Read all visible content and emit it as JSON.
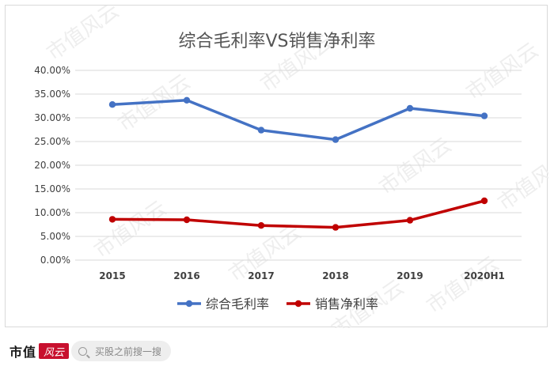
{
  "chart_data": {
    "type": "line",
    "title": "综合毛利率VS销售净利率",
    "categories": [
      "2015",
      "2016",
      "2017",
      "2018",
      "2019",
      "2020H1"
    ],
    "series": [
      {
        "name": "综合毛利率",
        "color": "#4472c4",
        "values": [
          32.8,
          33.7,
          27.4,
          25.4,
          32.0,
          30.4
        ]
      },
      {
        "name": "销售净利率",
        "color": "#c00000",
        "values": [
          8.6,
          8.5,
          7.3,
          6.9,
          8.4,
          12.5
        ]
      }
    ],
    "yticks": [
      "0.00%",
      "5.00%",
      "10.00%",
      "15.00%",
      "20.00%",
      "25.00%",
      "30.00%",
      "35.00%",
      "40.00%"
    ],
    "ylim": [
      0,
      40
    ],
    "grid": true,
    "legend_position": "bottom"
  },
  "footer": {
    "brand": "市值",
    "brand_logo": "风云",
    "search_placeholder": "买股之前搜一搜",
    "search_icon": "search-icon"
  },
  "watermark": "市值风云"
}
